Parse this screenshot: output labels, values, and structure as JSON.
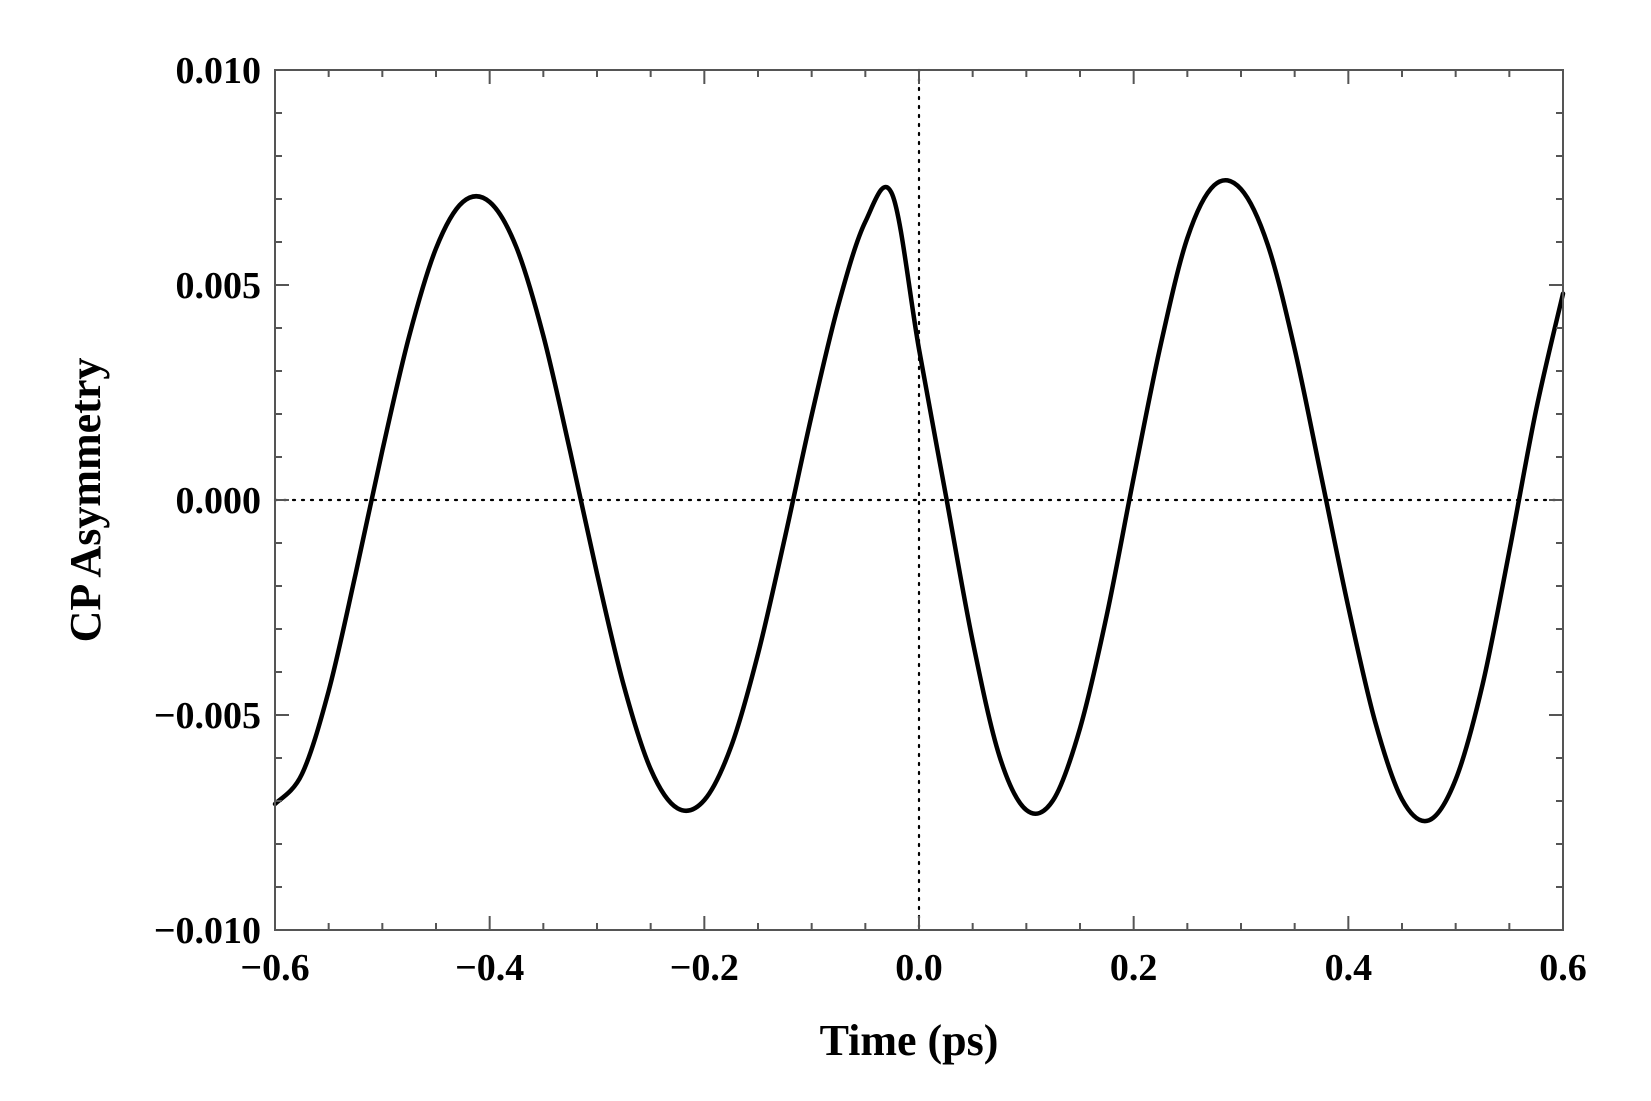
{
  "chart_data": {
    "type": "line",
    "title": "",
    "xlabel": "Time (ps)",
    "ylabel": "CP Asymmetry",
    "xlim": [
      -0.6,
      0.6
    ],
    "ylim": [
      -0.01,
      0.01
    ],
    "x_ticks": [
      -0.6,
      -0.4,
      -0.2,
      0.0,
      0.2,
      0.4,
      0.6
    ],
    "x_tick_labels": [
      "−0.6",
      "−0.4",
      "−0.2",
      "0.0",
      "0.2",
      "0.4",
      "0.6"
    ],
    "y_ticks": [
      -0.01,
      -0.005,
      0.0,
      0.005,
      0.01
    ],
    "y_tick_labels": [
      "−0.010",
      "−0.005",
      "0.000",
      "0.005",
      "0.010"
    ],
    "reference_lines": {
      "x": 0.0,
      "y": 0.0,
      "style": "dotted"
    },
    "grid": false,
    "series": [
      {
        "color": "#000000",
        "x": [
          -0.6,
          -0.575,
          -0.55,
          -0.525,
          -0.5,
          -0.475,
          -0.45,
          -0.425,
          -0.4,
          -0.375,
          -0.35,
          -0.325,
          -0.3,
          -0.275,
          -0.25,
          -0.225,
          -0.2,
          -0.175,
          -0.15,
          -0.125,
          -0.1,
          -0.075,
          -0.05,
          -0.025,
          0.0,
          0.025,
          0.05,
          0.075,
          0.1,
          0.125,
          0.15,
          0.175,
          0.2,
          0.225,
          0.25,
          0.275,
          0.3,
          0.325,
          0.35,
          0.375,
          0.4,
          0.425,
          0.45,
          0.475,
          0.5,
          0.525,
          0.55,
          0.575,
          0.6
        ],
        "y": [
          -0.00707,
          -0.00638,
          -0.00444,
          -0.00173,
          0.00115,
          0.00381,
          0.00585,
          0.00693,
          0.00693,
          0.00587,
          0.00382,
          0.00113,
          -0.00171,
          -0.00432,
          -0.00626,
          -0.00717,
          -0.00698,
          -0.00573,
          -0.00358,
          -0.00088,
          0.00197,
          0.00455,
          0.00647,
          0.00711,
          0.00351,
          0.00011,
          -0.00328,
          -0.00596,
          -0.00721,
          -0.00698,
          -0.00531,
          -0.00267,
          0.00052,
          0.00359,
          0.00609,
          0.00732,
          0.00723,
          0.00593,
          0.00351,
          0.00052,
          -0.00249,
          -0.00516,
          -0.00696,
          -0.00745,
          -0.0065,
          -0.0043,
          -0.00119,
          0.0021,
          0.0048
        ]
      }
    ]
  }
}
